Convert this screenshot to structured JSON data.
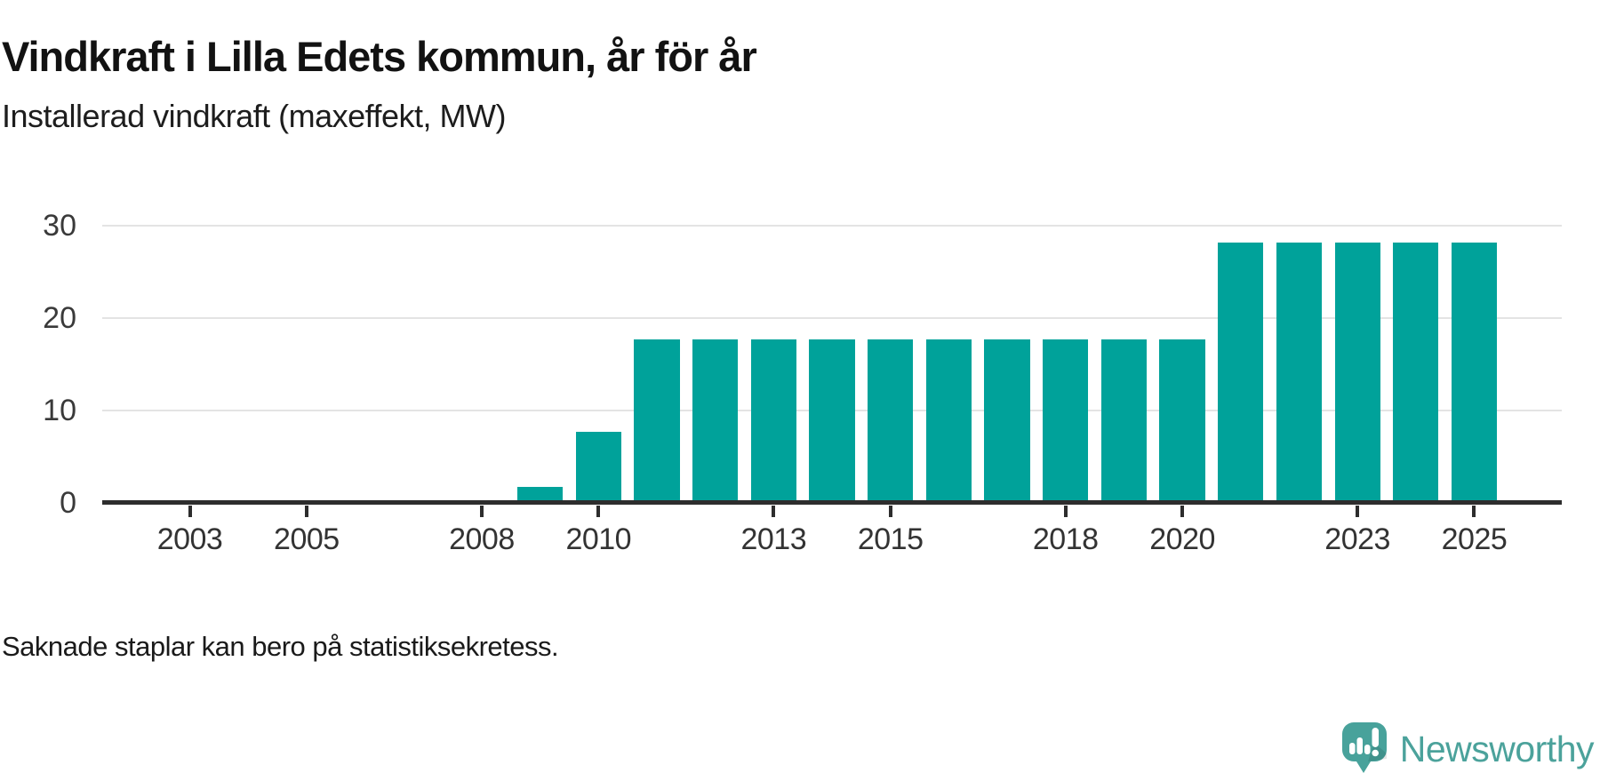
{
  "title": "Vindkraft i Lilla Edets kommun, år för år",
  "subtitle": "Installerad vindkraft (maxeffekt, MW)",
  "footnote": "Saknade staplar kan bero på statistiksekretess.",
  "brand": {
    "name": "Newsworthy",
    "icon": "speech-bubble-bar-chart-icon",
    "color": "#4ba29b"
  },
  "colors": {
    "bar": "#00a29a",
    "axis": "#2d2d2d",
    "grid": "#e4e4e4",
    "tick_text": "#333333"
  },
  "chart_data": {
    "type": "bar",
    "title": "Vindkraft i Lilla Edets kommun, år för år",
    "subtitle": "Installerad vindkraft (maxeffekt, MW)",
    "xlabel": "",
    "ylabel": "Installerad vindkraft (maxeffekt, MW)",
    "x": [
      2009,
      2010,
      2011,
      2012,
      2013,
      2014,
      2015,
      2016,
      2017,
      2018,
      2019,
      2020,
      2021,
      2022,
      2023,
      2024,
      2025
    ],
    "values": [
      1.7,
      7.7,
      17.7,
      17.7,
      17.7,
      17.7,
      17.7,
      17.7,
      17.7,
      17.7,
      17.7,
      17.7,
      28.2,
      28.2,
      28.2,
      28.2,
      28.2
    ],
    "missing_years": [
      2002,
      2003,
      2004,
      2005,
      2006,
      2007,
      2008
    ],
    "x_domain": [
      2002,
      2026
    ],
    "xticks": [
      2003,
      2005,
      2008,
      2010,
      2013,
      2015,
      2018,
      2020,
      2023,
      2025
    ],
    "ylim": [
      0,
      30
    ],
    "yticks": [
      0,
      10,
      20,
      30
    ],
    "grid": "horizontal",
    "legend": "none",
    "bar_color": "#00a29a",
    "note": "Saknade staplar kan bero på statistiksekretess."
  }
}
